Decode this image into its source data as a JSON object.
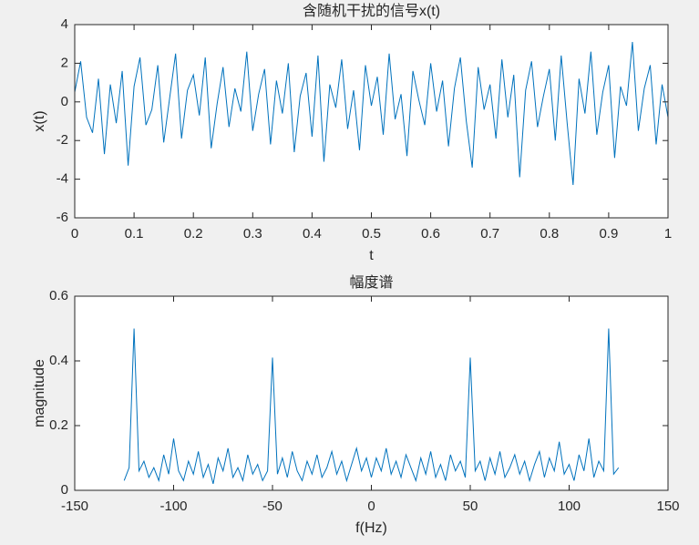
{
  "chart_data": [
    {
      "type": "line",
      "title": "含随机干扰的信号x(t)",
      "xlabel": "t",
      "ylabel": "x(t)",
      "xlim": [
        0,
        1
      ],
      "xticks": [
        0,
        0.1,
        0.2,
        0.3,
        0.4,
        0.5,
        0.6,
        0.7,
        0.8,
        0.9,
        1
      ],
      "ylim": [
        -6,
        4
      ],
      "yticks": [
        -6,
        -4,
        -2,
        0,
        2,
        4
      ],
      "x": [
        0,
        0.01,
        0.02,
        0.03,
        0.04,
        0.05,
        0.06,
        0.07,
        0.08,
        0.09,
        0.1,
        0.11,
        0.12,
        0.13,
        0.14,
        0.15,
        0.16,
        0.17,
        0.18,
        0.19,
        0.2,
        0.21,
        0.22,
        0.23,
        0.24,
        0.25,
        0.26,
        0.27,
        0.28,
        0.29,
        0.3,
        0.31,
        0.32,
        0.33,
        0.34,
        0.35,
        0.36,
        0.37,
        0.38,
        0.39,
        0.4,
        0.41,
        0.42,
        0.43,
        0.44,
        0.45,
        0.46,
        0.47,
        0.48,
        0.49,
        0.5,
        0.51,
        0.52,
        0.53,
        0.54,
        0.55,
        0.56,
        0.57,
        0.58,
        0.59,
        0.6,
        0.61,
        0.62,
        0.63,
        0.64,
        0.65,
        0.66,
        0.67,
        0.68,
        0.69,
        0.7,
        0.71,
        0.72,
        0.73,
        0.74,
        0.75,
        0.76,
        0.77,
        0.78,
        0.79,
        0.8,
        0.81,
        0.82,
        0.83,
        0.84,
        0.85,
        0.86,
        0.87,
        0.88,
        0.89,
        0.9,
        0.91,
        0.92,
        0.93,
        0.94,
        0.95,
        0.96,
        0.97,
        0.98,
        0.99,
        1
      ],
      "series": [
        {
          "color": "#0072bd",
          "values": [
            0.5,
            2.1,
            -0.8,
            -1.6,
            1.2,
            -2.7,
            0.9,
            -1.1,
            1.6,
            -3.3,
            0.8,
            2.3,
            -1.2,
            -0.4,
            1.9,
            -2.1,
            0.2,
            2.5,
            -1.9,
            0.6,
            1.4,
            -0.7,
            2.3,
            -2.4,
            -0.1,
            1.8,
            -1.3,
            0.7,
            -0.5,
            2.6,
            -1.5,
            0.4,
            1.7,
            -2.2,
            1.1,
            -0.6,
            2.0,
            -2.6,
            0.3,
            1.5,
            -1.8,
            2.4,
            -3.1,
            0.9,
            -0.3,
            2.2,
            -1.4,
            0.6,
            -2.5,
            1.9,
            -0.2,
            1.3,
            -1.7,
            2.5,
            -0.9,
            0.4,
            -2.8,
            1.6,
            0.1,
            -1.2,
            2.0,
            -0.5,
            1.1,
            -2.3,
            0.7,
            2.3,
            -1.0,
            -3.4,
            1.8,
            -0.4,
            0.9,
            -1.9,
            2.2,
            -0.8,
            1.4,
            -3.9,
            0.6,
            2.1,
            -1.3,
            0.3,
            1.7,
            -2.0,
            2.4,
            -1.1,
            -4.3,
            1.2,
            -0.6,
            2.6,
            -1.7,
            0.5,
            1.9,
            -2.9,
            0.8,
            -0.2,
            3.1,
            -1.5,
            0.7,
            1.9,
            -2.2,
            0.9,
            -0.8
          ]
        }
      ]
    },
    {
      "type": "line",
      "title": "幅度谱",
      "xlabel": "f(Hz)",
      "ylabel": "magnitude",
      "xlim": [
        -150,
        150
      ],
      "xticks": [
        -150,
        -100,
        -50,
        0,
        50,
        100,
        150
      ],
      "ylim": [
        0,
        0.6
      ],
      "yticks": [
        0,
        0.2,
        0.4,
        0.6
      ],
      "x": [
        -125,
        -122.5,
        -120,
        -117.5,
        -115,
        -112.5,
        -110,
        -107.5,
        -105,
        -102.5,
        -100,
        -97.5,
        -95,
        -92.5,
        -90,
        -87.5,
        -85,
        -82.5,
        -80,
        -77.5,
        -75,
        -72.5,
        -70,
        -67.5,
        -65,
        -62.5,
        -60,
        -57.5,
        -55,
        -52.5,
        -50,
        -47.5,
        -45,
        -42.5,
        -40,
        -37.5,
        -35,
        -32.5,
        -30,
        -27.5,
        -25,
        -22.5,
        -20,
        -17.5,
        -15,
        -12.5,
        -10,
        -7.5,
        -5,
        -2.5,
        0,
        2.5,
        5,
        7.5,
        10,
        12.5,
        15,
        17.5,
        20,
        22.5,
        25,
        27.5,
        30,
        32.5,
        35,
        37.5,
        40,
        42.5,
        45,
        47.5,
        50,
        52.5,
        55,
        57.5,
        60,
        62.5,
        65,
        67.5,
        70,
        72.5,
        75,
        77.5,
        80,
        82.5,
        85,
        87.5,
        90,
        92.5,
        95,
        97.5,
        100,
        102.5,
        105,
        107.5,
        110,
        112.5,
        115,
        117.5,
        120,
        122.5,
        125
      ],
      "series": [
        {
          "color": "#0072bd",
          "values": [
            0.03,
            0.07,
            0.5,
            0.06,
            0.09,
            0.04,
            0.07,
            0.03,
            0.11,
            0.05,
            0.16,
            0.06,
            0.03,
            0.09,
            0.05,
            0.12,
            0.04,
            0.08,
            0.02,
            0.1,
            0.06,
            0.13,
            0.04,
            0.07,
            0.03,
            0.11,
            0.05,
            0.08,
            0.03,
            0.06,
            0.41,
            0.05,
            0.1,
            0.04,
            0.12,
            0.06,
            0.03,
            0.09,
            0.05,
            0.11,
            0.04,
            0.07,
            0.12,
            0.05,
            0.09,
            0.03,
            0.08,
            0.13,
            0.06,
            0.1,
            0.04,
            0.1,
            0.06,
            0.13,
            0.05,
            0.09,
            0.04,
            0.11,
            0.07,
            0.03,
            0.1,
            0.05,
            0.12,
            0.04,
            0.08,
            0.03,
            0.11,
            0.06,
            0.09,
            0.04,
            0.41,
            0.06,
            0.09,
            0.03,
            0.1,
            0.05,
            0.12,
            0.04,
            0.07,
            0.11,
            0.05,
            0.09,
            0.03,
            0.08,
            0.12,
            0.04,
            0.1,
            0.06,
            0.15,
            0.05,
            0.08,
            0.03,
            0.11,
            0.06,
            0.16,
            0.04,
            0.09,
            0.06,
            0.5,
            0.05,
            0.07
          ]
        }
      ]
    }
  ]
}
